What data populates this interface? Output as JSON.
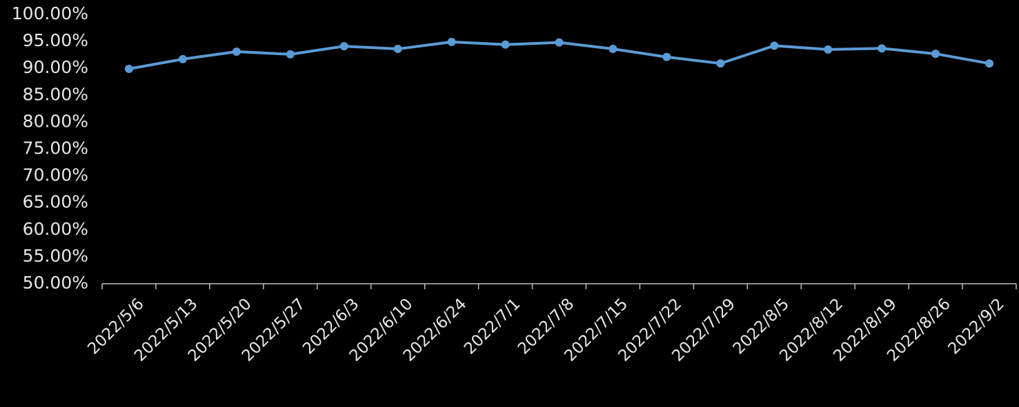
{
  "chart_data": {
    "type": "line",
    "categories": [
      "2022/5/6",
      "2022/5/13",
      "2022/5/20",
      "2022/5/27",
      "2022/6/3",
      "2022/6/10",
      "2022/6/24",
      "2022/7/1",
      "2022/7/8",
      "2022/7/15",
      "2022/7/22",
      "2022/7/29",
      "2022/8/5",
      "2022/8/12",
      "2022/8/19",
      "2022/8/26",
      "2022/9/2"
    ],
    "values": [
      89.9,
      91.7,
      93.1,
      92.6,
      94.1,
      93.6,
      94.9,
      94.4,
      94.8,
      93.6,
      92.1,
      90.9,
      94.2,
      93.5,
      93.7,
      92.7,
      90.9
    ],
    "color": "#5b9bd5",
    "ylim": [
      50,
      100
    ],
    "yticks": [
      {
        "value": 50,
        "label": "50.00%"
      },
      {
        "value": 55,
        "label": "55.00%"
      },
      {
        "value": 60,
        "label": "60.00%"
      },
      {
        "value": 65,
        "label": "65.00%"
      },
      {
        "value": 70,
        "label": "70.00%"
      },
      {
        "value": 75,
        "label": "75.00%"
      },
      {
        "value": 80,
        "label": "80.00%"
      },
      {
        "value": 85,
        "label": "85.00%"
      },
      {
        "value": 90,
        "label": "90.00%"
      },
      {
        "value": 95,
        "label": "95.00%"
      },
      {
        "value": 100,
        "label": "100.00%"
      }
    ],
    "grid": false
  }
}
